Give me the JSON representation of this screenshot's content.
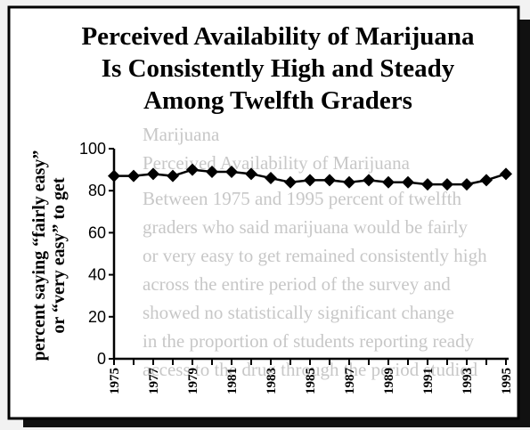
{
  "chart_data": {
    "type": "line",
    "title_lines": [
      "Perceived Availability of Marijuana",
      "Is Consistently High and Steady",
      "Among Twelfth Graders"
    ],
    "ylabel_lines": [
      "percent saying “fairly easy”",
      "or “very easy” to get"
    ],
    "xlabel": "",
    "ylim": [
      0,
      100
    ],
    "y_ticks": [
      0,
      20,
      40,
      60,
      80,
      100
    ],
    "x_tick_labels": [
      "1975",
      "1977",
      "1979",
      "1981",
      "1983",
      "1985",
      "1987",
      "1989",
      "1991",
      "1993",
      "1995"
    ],
    "grid": false,
    "marker": "diamond",
    "x": [
      1975,
      1976,
      1977,
      1978,
      1979,
      1980,
      1981,
      1982,
      1983,
      1984,
      1985,
      1986,
      1987,
      1988,
      1989,
      1990,
      1991,
      1992,
      1993,
      1994,
      1995
    ],
    "values": [
      87,
      87,
      88,
      87,
      90,
      89,
      89,
      88,
      86,
      84,
      85,
      85,
      84,
      85,
      84,
      84,
      83,
      83,
      83,
      85,
      88
    ]
  },
  "colors": {
    "page_background": "#f2f2f2",
    "panel_background": "#ffffff",
    "shadow": "#111111",
    "ink": "#000000"
  }
}
